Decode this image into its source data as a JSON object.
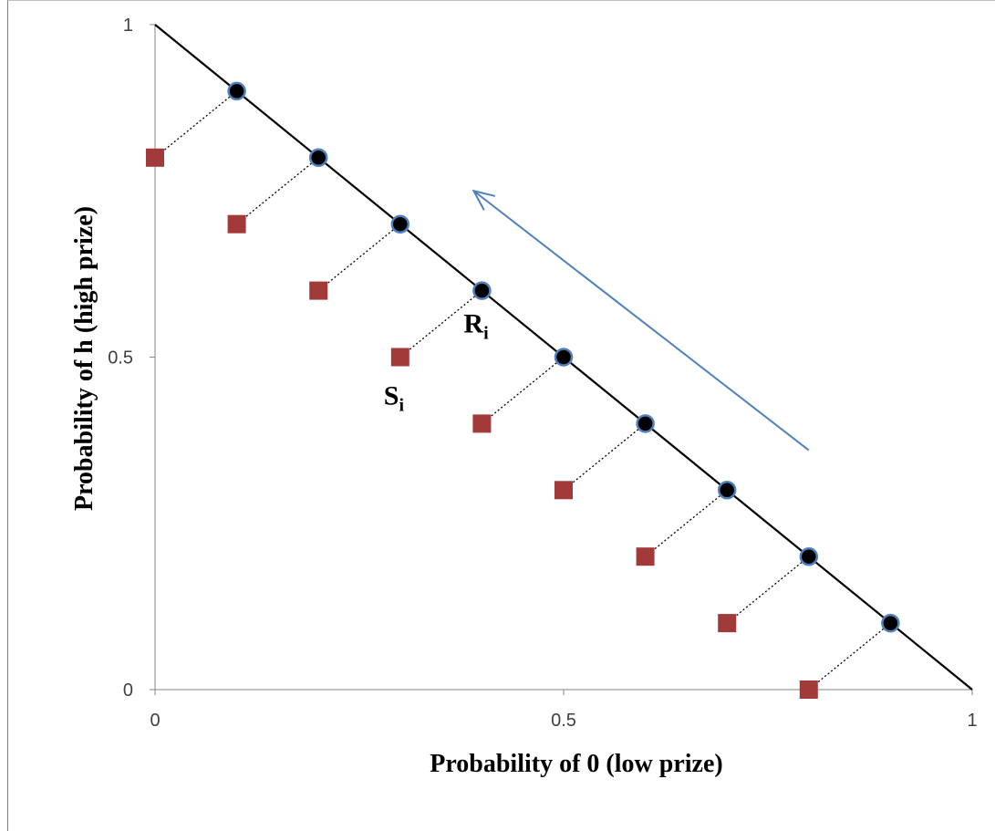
{
  "chart_data": {
    "type": "scatter",
    "title": "",
    "xlabel": "Probability of 0  (low prize)",
    "ylabel": "Probability of  h (high prize)",
    "xlim": [
      0,
      1
    ],
    "ylim": [
      0,
      1
    ],
    "x_ticks": [
      "0",
      "0.5",
      "1"
    ],
    "y_ticks": [
      "0",
      "0.5",
      "1"
    ],
    "grid": false,
    "line": {
      "from": [
        0,
        1
      ],
      "to": [
        1,
        0
      ],
      "color": "#000000"
    },
    "series": [
      {
        "marker": "circle",
        "color": "#000000",
        "points": [
          [
            0.1,
            0.9
          ],
          [
            0.2,
            0.8
          ],
          [
            0.3,
            0.7
          ],
          [
            0.4,
            0.6
          ],
          [
            0.5,
            0.5
          ],
          [
            0.6,
            0.4
          ],
          [
            0.7,
            0.3
          ],
          [
            0.8,
            0.2
          ],
          [
            0.9,
            0.1
          ]
        ]
      },
      {
        "marker": "square",
        "color": "#a33a3a",
        "points": [
          [
            0,
            0.8
          ],
          [
            0.1,
            0.7
          ],
          [
            0.2,
            0.6
          ],
          [
            0.3,
            0.5
          ],
          [
            0.4,
            0.4
          ],
          [
            0.5,
            0.3
          ],
          [
            0.6,
            0.2
          ],
          [
            0.7,
            0.1
          ],
          [
            0.8,
            0
          ]
        ]
      }
    ],
    "connectors": "dotted lines join each square to the circle on the diagonal",
    "annotations": [
      {
        "text": "R",
        "sub": "i",
        "at": [
          0.4,
          0.6
        ]
      },
      {
        "text": "S",
        "sub": "i",
        "at": [
          0.3,
          0.5
        ]
      }
    ],
    "arrow": {
      "from": [
        0.8,
        0.36
      ],
      "to": [
        0.39,
        0.75
      ],
      "color": "#4f81bd"
    }
  }
}
